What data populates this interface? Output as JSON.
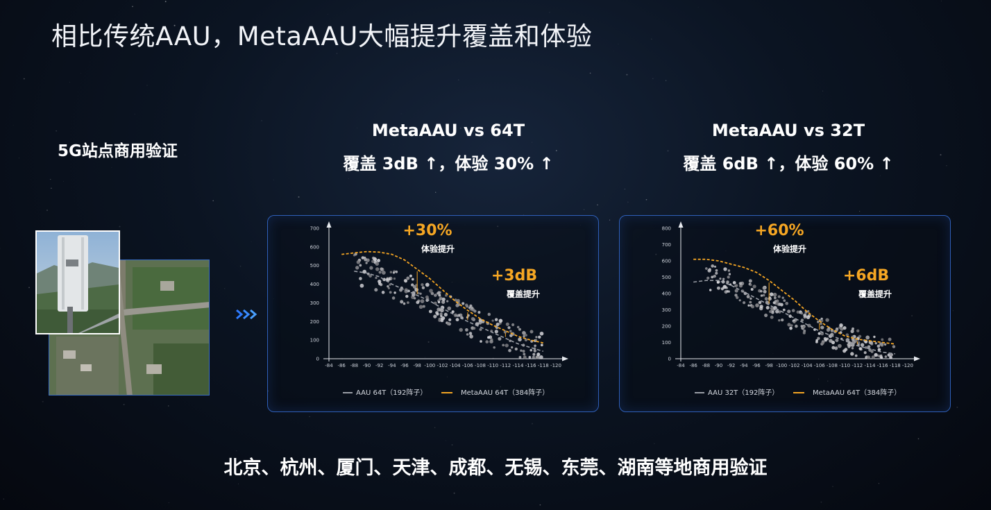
{
  "title": "相比传统AAU，MetaAAU大幅提升覆盖和体验",
  "left_label": "5G站点商用验证",
  "bottom_text": "北京、杭州、厦门、天津、成都、无锡、东莞、湖南等地商用验证",
  "colors": {
    "accent": "#f5a623",
    "baseline": "#9a9ea6",
    "panel_border": "#2f5fb8"
  },
  "chart_data": [
    {
      "type": "scatter",
      "heading_line1": "MetaAAU vs 64T",
      "heading_line2": "覆盖 3dB ↑，体验 30% ↑",
      "x_ticks": [
        "-84",
        "-86",
        "-88",
        "-90",
        "-92",
        "-94",
        "-96",
        "-98",
        "-100",
        "-102",
        "-104",
        "-106",
        "-108",
        "-110",
        "-112",
        "-114",
        "-116",
        "-118",
        "-120"
      ],
      "y_ticks": [
        "0",
        "100",
        "200",
        "300",
        "400",
        "500",
        "600",
        "700"
      ],
      "xlim": [
        -84,
        -120
      ],
      "ylim": [
        0,
        700
      ],
      "annotations": [
        {
          "big": "+30%",
          "small": "体验提升"
        },
        {
          "big": "+3dB",
          "small": "覆盖提升"
        }
      ],
      "series": [
        {
          "name": "AAU 64T（192阵子）",
          "color": "#9a9ea6",
          "x": [
            -88,
            -90,
            -92,
            -94,
            -96,
            -98,
            -100,
            -102,
            -104,
            -106,
            -108,
            -110,
            -112,
            -114,
            -116,
            -118
          ],
          "y": [
            470,
            460,
            440,
            400,
            370,
            340,
            310,
            270,
            235,
            200,
            170,
            140,
            110,
            80,
            60,
            40
          ]
        },
        {
          "name": "MetaAAU 64T（384阵子）",
          "color": "#f5a623",
          "x": [
            -86,
            -88,
            -90,
            -92,
            -94,
            -96,
            -98,
            -100,
            -102,
            -104,
            -106,
            -108,
            -110,
            -112,
            -114,
            -116,
            -118
          ],
          "y": [
            560,
            568,
            575,
            572,
            560,
            530,
            480,
            430,
            370,
            310,
            260,
            215,
            180,
            150,
            120,
            100,
            85
          ]
        }
      ]
    },
    {
      "type": "scatter",
      "heading_line1": "MetaAAU vs 32T",
      "heading_line2": "覆盖 6dB ↑，体验 60% ↑",
      "x_ticks": [
        "-84",
        "-86",
        "-88",
        "-90",
        "-92",
        "-94",
        "-96",
        "-98",
        "-100",
        "-102",
        "-104",
        "-106",
        "-108",
        "-110",
        "-112",
        "-114",
        "-116",
        "-118",
        "-120"
      ],
      "y_ticks": [
        "0",
        "100",
        "200",
        "300",
        "400",
        "500",
        "600",
        "700",
        "800"
      ],
      "xlim": [
        -84,
        -120
      ],
      "ylim": [
        0,
        800
      ],
      "annotations": [
        {
          "big": "+60%",
          "small": "体验提升"
        },
        {
          "big": "+6dB",
          "small": "覆盖提升"
        }
      ],
      "series": [
        {
          "name": "AAU 32T（192阵子）",
          "color": "#9a9ea6",
          "x": [
            -86,
            -88,
            -90,
            -92,
            -94,
            -96,
            -98,
            -100,
            -102,
            -104,
            -106,
            -108,
            -110,
            -112,
            -114,
            -116,
            -118
          ],
          "y": [
            470,
            480,
            480,
            450,
            410,
            370,
            330,
            290,
            250,
            210,
            170,
            140,
            110,
            80,
            60,
            40,
            30
          ]
        },
        {
          "name": "MetaAAU 64T（384阵子）",
          "color": "#f5a623",
          "x": [
            -86,
            -88,
            -90,
            -92,
            -94,
            -96,
            -98,
            -100,
            -102,
            -104,
            -106,
            -108,
            -110,
            -112,
            -114,
            -116,
            -118
          ],
          "y": [
            610,
            610,
            600,
            580,
            560,
            530,
            480,
            420,
            360,
            290,
            230,
            180,
            140,
            120,
            110,
            100,
            90
          ]
        }
      ]
    }
  ]
}
